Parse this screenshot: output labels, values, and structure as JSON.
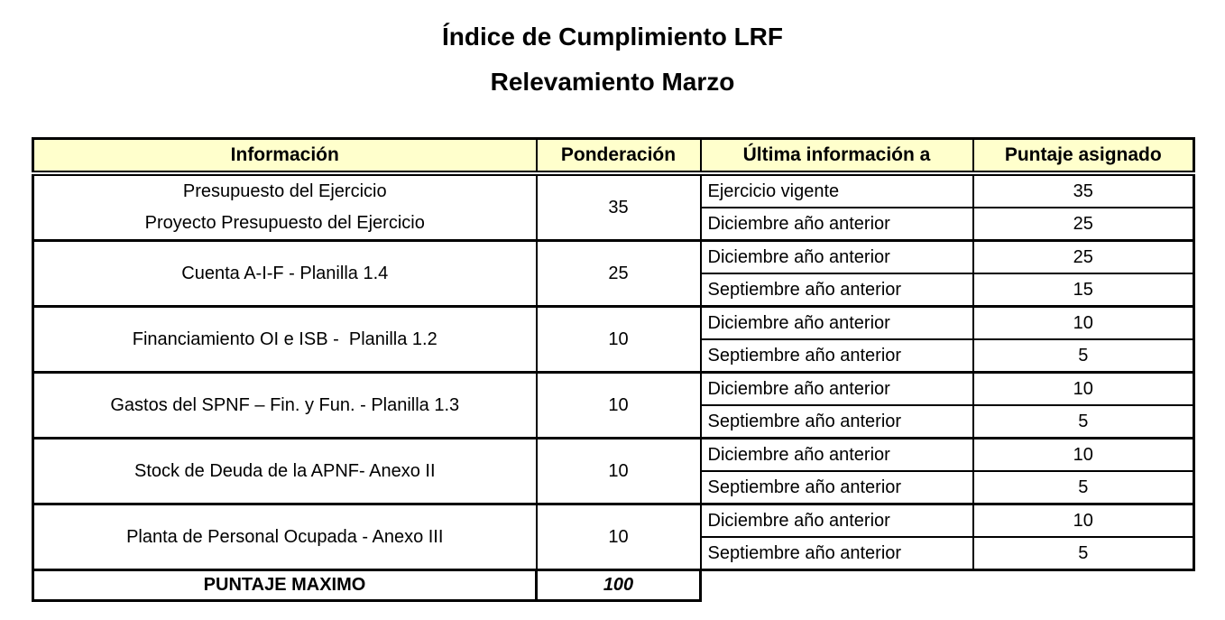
{
  "colors": {
    "page_bg": "#FFFFFF",
    "header_bg": "#FFFFCC",
    "border": "#000000",
    "text": "#000000"
  },
  "titles": {
    "line1": "Índice de Cumplimiento LRF",
    "line2": "Relevamiento Marzo"
  },
  "table": {
    "headers": [
      "Información",
      "Ponderación",
      "Última información a",
      "Puntaje asignado"
    ],
    "groups": [
      {
        "info_lines": [
          "Presupuesto del Ejercicio",
          "Proyecto Presupuesto del Ejercicio"
        ],
        "ponderacion": "35",
        "rows": [
          {
            "periodo": "Ejercicio vigente",
            "puntaje": "35"
          },
          {
            "periodo": "Diciembre año anterior",
            "puntaje": "25"
          }
        ]
      },
      {
        "info_lines": [
          "Cuenta A-I-F - Planilla 1.4"
        ],
        "ponderacion": "25",
        "rows": [
          {
            "periodo": "Diciembre año anterior",
            "puntaje": "25"
          },
          {
            "periodo": "Septiembre año anterior",
            "puntaje": "15"
          }
        ]
      },
      {
        "info_lines": [
          "Financiamiento OI e ISB -  Planilla 1.2"
        ],
        "ponderacion": "10",
        "rows": [
          {
            "periodo": "Diciembre año anterior",
            "puntaje": "10"
          },
          {
            "periodo": "Septiembre año anterior",
            "puntaje": "5"
          }
        ]
      },
      {
        "info_lines": [
          "Gastos del SPNF – Fin. y Fun. - Planilla 1.3"
        ],
        "ponderacion": "10",
        "rows": [
          {
            "periodo": "Diciembre año anterior",
            "puntaje": "10"
          },
          {
            "periodo": "Septiembre año anterior",
            "puntaje": "5"
          }
        ]
      },
      {
        "info_lines": [
          "Stock de Deuda de la APNF- Anexo II"
        ],
        "ponderacion": "10",
        "rows": [
          {
            "periodo": "Diciembre año anterior",
            "puntaje": "10"
          },
          {
            "periodo": "Septiembre año anterior",
            "puntaje": "5"
          }
        ]
      },
      {
        "info_lines": [
          "Planta de Personal Ocupada - Anexo III"
        ],
        "ponderacion": "10",
        "rows": [
          {
            "periodo": "Diciembre año anterior",
            "puntaje": "10"
          },
          {
            "periodo": "Septiembre año anterior",
            "puntaje": "5"
          }
        ]
      }
    ],
    "footer": {
      "label": "PUNTAJE MAXIMO",
      "value": "100"
    }
  }
}
